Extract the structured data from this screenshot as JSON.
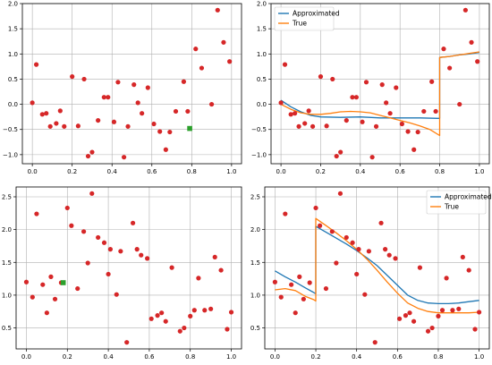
{
  "chart_data": [
    {
      "type": "scatter",
      "panel": "top-left",
      "xlim": [
        -0.05,
        1.05
      ],
      "ylim": [
        -1.18,
        2.0
      ],
      "xticks": [
        0.0,
        0.2,
        0.4,
        0.6,
        0.8,
        1.0
      ],
      "yticks": [
        -1.0,
        -0.5,
        0.0,
        0.5,
        1.0,
        1.5,
        2.0
      ],
      "xtick_labels": [
        "0.0",
        "0.2",
        "0.4",
        "0.6",
        "0.8",
        "1.0"
      ],
      "ytick_labels": [
        "−1.0",
        "−0.5",
        "0.0",
        "0.5",
        "1.0",
        "1.5",
        "2.0"
      ],
      "grid": true,
      "points": {
        "color": "#d62728",
        "x": [
          0.0,
          0.02,
          0.05,
          0.07,
          0.09,
          0.12,
          0.14,
          0.16,
          0.2,
          0.23,
          0.26,
          0.28,
          0.3,
          0.33,
          0.36,
          0.38,
          0.41,
          0.43,
          0.46,
          0.48,
          0.51,
          0.53,
          0.55,
          0.58,
          0.61,
          0.64,
          0.67,
          0.69,
          0.72,
          0.76,
          0.78,
          0.82,
          0.85,
          0.9,
          0.93,
          0.96,
          0.99
        ],
        "y": [
          0.03,
          0.79,
          -0.2,
          -0.18,
          -0.44,
          -0.38,
          -0.13,
          -0.44,
          0.55,
          -0.43,
          0.5,
          -1.03,
          -0.95,
          -0.32,
          0.14,
          0.14,
          -0.35,
          0.44,
          -1.05,
          -0.44,
          0.39,
          0.03,
          -0.18,
          0.33,
          -0.39,
          -0.54,
          -0.9,
          -0.55,
          -0.14,
          0.45,
          -0.14,
          1.1,
          0.72,
          0.0,
          1.87,
          1.23,
          0.85
        ]
      },
      "highlight": {
        "color": "#2ca02c",
        "x": 0.79,
        "y": -0.48
      }
    },
    {
      "type": "line",
      "panel": "top-right",
      "xlim": [
        -0.05,
        1.05
      ],
      "ylim": [
        -1.18,
        2.0
      ],
      "xticks": [
        0.0,
        0.2,
        0.4,
        0.6,
        0.8,
        1.0
      ],
      "yticks": [
        -1.0,
        -0.5,
        0.0,
        0.5,
        1.0,
        1.5,
        2.0
      ],
      "xtick_labels": [
        "0.0",
        "0.2",
        "0.4",
        "0.6",
        "0.8",
        "1.0"
      ],
      "ytick_labels": [
        "−1.0",
        "−0.5",
        "0.0",
        "0.5",
        "1.0",
        "1.5",
        "2.0"
      ],
      "grid": true,
      "legend": {
        "placement": "upper-left",
        "entries": [
          "Approximated",
          "True"
        ]
      },
      "series": [
        {
          "name": "Approximated",
          "color": "#1f77b4",
          "x": [
            0.0,
            0.05,
            0.1,
            0.15,
            0.2,
            0.3,
            0.4,
            0.5,
            0.6,
            0.7,
            0.79,
            0.8,
            0.8,
            0.85,
            0.9,
            0.95,
            1.0
          ],
          "y": [
            0.08,
            -0.05,
            -0.15,
            -0.22,
            -0.25,
            -0.26,
            -0.25,
            -0.27,
            -0.27,
            -0.27,
            -0.28,
            -0.28,
            0.93,
            0.95,
            0.98,
            1.0,
            1.03
          ]
        },
        {
          "name": "True",
          "color": "#ff7f0e",
          "x": [
            0.0,
            0.05,
            0.1,
            0.15,
            0.2,
            0.25,
            0.3,
            0.35,
            0.4,
            0.45,
            0.5,
            0.55,
            0.6,
            0.65,
            0.7,
            0.75,
            0.8,
            0.8,
            0.85,
            0.9,
            0.95,
            1.0
          ],
          "y": [
            0.0,
            -0.1,
            -0.17,
            -0.2,
            -0.2,
            -0.18,
            -0.15,
            -0.14,
            -0.15,
            -0.17,
            -0.22,
            -0.27,
            -0.32,
            -0.37,
            -0.43,
            -0.5,
            -0.62,
            0.93,
            0.95,
            0.98,
            1.01,
            1.04
          ]
        }
      ],
      "points": {
        "color": "#d62728",
        "same_as_panel": "top-left"
      }
    },
    {
      "type": "scatter",
      "panel": "bottom-left",
      "xlim": [
        -0.05,
        1.05
      ],
      "ylim": [
        0.18,
        2.65
      ],
      "xticks": [
        0.0,
        0.2,
        0.4,
        0.6,
        0.8,
        1.0
      ],
      "yticks": [
        0.5,
        1.0,
        1.5,
        2.0,
        2.5
      ],
      "xtick_labels": [
        "0.0",
        "0.2",
        "0.4",
        "0.6",
        "0.8",
        "1.0"
      ],
      "ytick_labels": [
        "0.5",
        "1.0",
        "1.5",
        "2.0",
        "2.5"
      ],
      "grid": true,
      "points": {
        "color": "#d62728",
        "x": [
          0.0,
          0.03,
          0.05,
          0.08,
          0.1,
          0.12,
          0.14,
          0.17,
          0.2,
          0.22,
          0.25,
          0.28,
          0.3,
          0.32,
          0.35,
          0.38,
          0.4,
          0.41,
          0.44,
          0.46,
          0.49,
          0.52,
          0.54,
          0.56,
          0.59,
          0.61,
          0.64,
          0.66,
          0.68,
          0.71,
          0.75,
          0.77,
          0.8,
          0.82,
          0.84,
          0.87,
          0.9,
          0.92,
          0.95,
          0.98,
          1.0
        ],
        "y": [
          1.2,
          0.97,
          2.24,
          1.16,
          0.73,
          1.28,
          0.94,
          1.19,
          2.33,
          2.06,
          1.1,
          1.97,
          1.49,
          2.55,
          1.88,
          1.8,
          1.32,
          1.7,
          1.01,
          1.67,
          0.28,
          2.1,
          1.7,
          1.61,
          1.56,
          0.64,
          0.69,
          0.73,
          0.6,
          1.42,
          0.45,
          0.5,
          0.68,
          0.77,
          1.26,
          0.77,
          0.79,
          1.58,
          1.38,
          0.48,
          0.74
        ]
      },
      "highlight": {
        "color": "#2ca02c",
        "x": 0.18,
        "y": 1.19
      }
    },
    {
      "type": "line",
      "panel": "bottom-right",
      "xlim": [
        -0.05,
        1.05
      ],
      "ylim": [
        0.18,
        2.65
      ],
      "xticks": [
        0.0,
        0.2,
        0.4,
        0.6,
        0.8,
        1.0
      ],
      "yticks": [
        0.5,
        1.0,
        1.5,
        2.0,
        2.5
      ],
      "xtick_labels": [
        "0.0",
        "0.2",
        "0.4",
        "0.6",
        "0.8",
        "1.0"
      ],
      "ytick_labels": [
        "0.5",
        "1.0",
        "1.5",
        "2.0",
        "2.5"
      ],
      "grid": true,
      "legend": {
        "placement": "upper-right",
        "entries": [
          "Approximated",
          "True"
        ]
      },
      "series": [
        {
          "name": "Approximated",
          "color": "#1f77b4",
          "x": [
            0.0,
            0.05,
            0.1,
            0.15,
            0.19,
            0.2,
            0.2,
            0.25,
            0.3,
            0.35,
            0.4,
            0.45,
            0.5,
            0.55,
            0.6,
            0.65,
            0.7,
            0.75,
            0.8,
            0.85,
            0.9,
            0.95,
            1.0
          ],
          "y": [
            1.37,
            1.28,
            1.2,
            1.11,
            1.04,
            1.02,
            2.05,
            1.96,
            1.87,
            1.78,
            1.68,
            1.57,
            1.45,
            1.3,
            1.15,
            1.0,
            0.92,
            0.88,
            0.87,
            0.87,
            0.88,
            0.9,
            0.92
          ]
        },
        {
          "name": "True",
          "color": "#ff7f0e",
          "x": [
            0.0,
            0.05,
            0.1,
            0.15,
            0.19,
            0.2,
            0.2,
            0.25,
            0.3,
            0.35,
            0.4,
            0.45,
            0.5,
            0.55,
            0.6,
            0.65,
            0.7,
            0.75,
            0.8,
            0.85,
            0.9,
            0.95,
            1.0
          ],
          "y": [
            1.08,
            1.1,
            1.07,
            0.98,
            0.93,
            0.91,
            2.17,
            2.06,
            1.95,
            1.83,
            1.7,
            1.55,
            1.38,
            1.2,
            1.03,
            0.88,
            0.8,
            0.75,
            0.73,
            0.73,
            0.73,
            0.73,
            0.74
          ]
        }
      ],
      "points": {
        "color": "#d62728",
        "same_as_panel": "bottom-left"
      }
    }
  ]
}
